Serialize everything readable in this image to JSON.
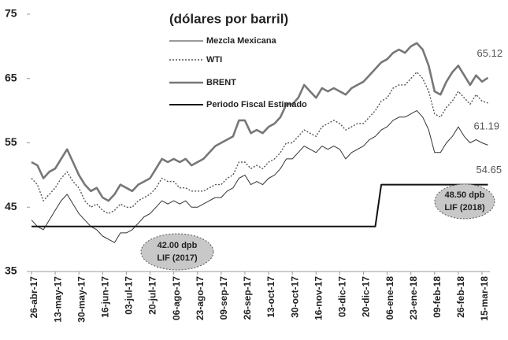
{
  "chart_data": {
    "type": "line",
    "title": "(dólares por barril)",
    "categories": [
      "26-abr-17",
      null,
      null,
      null,
      "13-may-17",
      null,
      null,
      null,
      "30-may-17",
      null,
      null,
      null,
      "16-jun-17",
      null,
      null,
      null,
      "03-jul-17",
      null,
      null,
      null,
      "20-jul-17",
      null,
      null,
      null,
      "06-ago-17",
      null,
      null,
      null,
      "23-ago-17",
      null,
      null,
      null,
      "09-sep-17",
      null,
      null,
      null,
      "26-sep-17",
      null,
      null,
      null,
      "13-oct-17",
      null,
      null,
      null,
      "30-oct-17",
      null,
      null,
      null,
      "16-nov-17",
      null,
      null,
      null,
      "03-dic-17",
      null,
      null,
      null,
      "20-dic-17",
      null,
      null,
      null,
      "06-ene-18",
      null,
      null,
      null,
      "23-ene-18",
      null,
      null,
      null,
      "09-feb-18",
      null,
      null,
      null,
      "26-feb-18",
      null,
      null,
      null,
      "15-mar-18",
      null
    ],
    "series": [
      {
        "name": "Mezcla Mexicana",
        "color": "#333333",
        "values": [
          43,
          42,
          41.5,
          43,
          44.5,
          46,
          47,
          45.5,
          44,
          43,
          42,
          41.5,
          40.5,
          40,
          39.5,
          41,
          41,
          41.5,
          42.5,
          43.5,
          44,
          45,
          46,
          45.5,
          46,
          45.5,
          46,
          45,
          45,
          45.5,
          46,
          46.5,
          46.5,
          47.5,
          48,
          49.5,
          50,
          48.5,
          49,
          48.5,
          49.5,
          50,
          51,
          52.5,
          52.5,
          53.5,
          54.5,
          54,
          53.5,
          54.5,
          54,
          54.5,
          54,
          52.5,
          53.5,
          54,
          54.5,
          55.5,
          56,
          57,
          57.5,
          58.5,
          59,
          59,
          59.5,
          60,
          59,
          57,
          53.5,
          53.5,
          55,
          56,
          57.5,
          56,
          55,
          55.5,
          55,
          54.65
        ]
      },
      {
        "name": "WTI",
        "color": "#555555",
        "values": [
          49.5,
          48.5,
          46,
          47,
          48,
          49.5,
          50.5,
          49,
          48,
          46,
          45,
          45.5,
          44.5,
          44,
          44.5,
          45.5,
          45,
          45,
          46,
          46.5,
          47,
          48,
          49.5,
          49,
          49,
          48,
          48,
          47.5,
          47.5,
          47.5,
          48,
          48.5,
          48.5,
          49.5,
          50,
          52,
          52,
          51,
          51.5,
          51,
          52,
          52.5,
          53.5,
          55,
          55,
          56,
          57,
          56.5,
          56,
          57.5,
          58,
          58.5,
          58,
          57,
          57.5,
          58,
          58,
          59,
          60,
          61.5,
          62,
          63.5,
          64,
          64,
          65,
          66,
          65,
          63,
          59.5,
          59,
          60.5,
          61.5,
          63,
          62,
          61,
          62.5,
          61.5,
          61.19
        ]
      },
      {
        "name": "BRENT",
        "color": "#777777",
        "values": [
          52,
          51.5,
          49.5,
          50.5,
          51,
          52.5,
          54,
          52,
          50,
          48.5,
          47.5,
          48,
          46.5,
          46,
          47,
          48.5,
          48,
          47.5,
          48.5,
          49,
          49.5,
          51,
          52.5,
          52,
          52.5,
          52,
          52.5,
          51.5,
          52,
          52.5,
          53.5,
          54.5,
          55,
          55.5,
          56,
          58.5,
          58.5,
          56.5,
          57,
          56.5,
          57.5,
          58,
          59,
          61,
          61,
          62,
          64,
          63,
          62,
          63.5,
          63,
          63.5,
          63,
          62.5,
          63.5,
          64,
          64.5,
          65.5,
          66.5,
          67.5,
          68,
          69,
          69.5,
          69,
          70,
          70.5,
          69.5,
          67,
          63,
          62.5,
          64.5,
          66,
          67,
          65.5,
          64,
          65.5,
          64.5,
          65.12
        ]
      },
      {
        "name": "Periodo Fiscal Estimado",
        "color": "#111111",
        "values": [
          42,
          42,
          42,
          42,
          42,
          42,
          42,
          42,
          42,
          42,
          42,
          42,
          42,
          42,
          42,
          42,
          42,
          42,
          42,
          42,
          42,
          42,
          42,
          42,
          42,
          42,
          42,
          42,
          42,
          42,
          42,
          42,
          42,
          42,
          42,
          42,
          42,
          42,
          42,
          42,
          42,
          42,
          42,
          42,
          42,
          42,
          42,
          42,
          42,
          42,
          42,
          42,
          42,
          42,
          42,
          42,
          42,
          42,
          42,
          48.5,
          48.5,
          48.5,
          48.5,
          48.5,
          48.5,
          48.5,
          48.5,
          48.5,
          48.5,
          48.5,
          48.5,
          48.5,
          48.5,
          48.5,
          48.5,
          48.5,
          48.5,
          48.5
        ]
      }
    ],
    "ylim": [
      35,
      75
    ],
    "yticks": [
      35,
      45,
      55,
      65,
      75
    ],
    "annotations": [
      [
        "42.00 dpb",
        "LIF (2017)"
      ],
      [
        "48.50 dpb",
        "LIF (2018)"
      ]
    ]
  }
}
